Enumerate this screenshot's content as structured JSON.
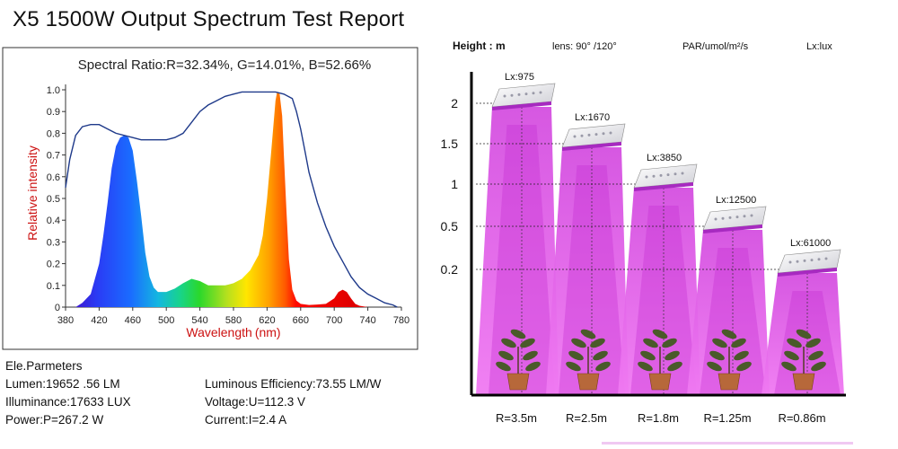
{
  "title": "X5 1500W Output Spectrum Test Report",
  "chart_data": [
    {
      "type": "line",
      "title": "Spectral Ratio:R=32.34%, G=14.01%, B=52.66%",
      "xlabel": "Wavelength",
      "xlabel_unit": "(nm)",
      "ylabel": "Relative intensity",
      "xlim": [
        380,
        780
      ],
      "ylim": [
        0,
        1.0
      ],
      "x_ticks": [
        "380",
        "420",
        "460",
        "500",
        "540",
        "580",
        "620",
        "660",
        "700",
        "740",
        "780"
      ],
      "y_ticks": [
        "0",
        "0.1",
        "0.2",
        "0.3",
        "0.4",
        "0.5",
        "0.6",
        "0.7",
        "0.8",
        "0.9",
        "1.0"
      ],
      "grid": false,
      "series": [
        {
          "name": "",
          "style": "outline",
          "color": "#1f3a8a",
          "x": [
            380,
            385,
            392,
            400,
            410,
            420,
            430,
            440,
            450,
            460,
            470,
            480,
            490,
            500,
            510,
            520,
            530,
            540,
            550,
            560,
            570,
            580,
            590,
            600,
            610,
            620,
            630,
            640,
            650,
            655,
            660,
            665,
            670,
            680,
            690,
            700,
            710,
            720,
            730,
            740,
            750,
            760,
            770,
            775
          ],
          "y": [
            0.55,
            0.68,
            0.79,
            0.83,
            0.84,
            0.84,
            0.82,
            0.8,
            0.79,
            0.78,
            0.77,
            0.77,
            0.77,
            0.77,
            0.78,
            0.8,
            0.85,
            0.9,
            0.93,
            0.95,
            0.97,
            0.98,
            0.99,
            0.99,
            0.99,
            0.99,
            0.99,
            0.98,
            0.96,
            0.9,
            0.82,
            0.72,
            0.62,
            0.48,
            0.37,
            0.28,
            0.21,
            0.14,
            0.09,
            0.06,
            0.04,
            0.02,
            0.01,
            0.0
          ]
        },
        {
          "name": "",
          "style": "filled-spectrum",
          "x": [
            392,
            400,
            410,
            420,
            425,
            430,
            435,
            440,
            445,
            450,
            455,
            460,
            465,
            470,
            475,
            480,
            485,
            490,
            500,
            510,
            520,
            530,
            540,
            550,
            560,
            570,
            580,
            590,
            600,
            610,
            615,
            620,
            625,
            630,
            632,
            635,
            638,
            640,
            643,
            646,
            650,
            655,
            660,
            670,
            680,
            690,
            700,
            705,
            710,
            715,
            720,
            725,
            730,
            740,
            750,
            760,
            770
          ],
          "y": [
            0.0,
            0.02,
            0.06,
            0.2,
            0.33,
            0.48,
            0.64,
            0.74,
            0.78,
            0.79,
            0.78,
            0.72,
            0.58,
            0.42,
            0.25,
            0.14,
            0.09,
            0.07,
            0.07,
            0.085,
            0.11,
            0.13,
            0.12,
            0.1,
            0.1,
            0.1,
            0.11,
            0.13,
            0.17,
            0.24,
            0.33,
            0.5,
            0.72,
            0.95,
            0.99,
            0.98,
            0.88,
            0.7,
            0.45,
            0.22,
            0.08,
            0.03,
            0.015,
            0.01,
            0.012,
            0.015,
            0.04,
            0.07,
            0.08,
            0.07,
            0.04,
            0.015,
            0.006,
            0.0,
            0.0,
            0.0,
            0.0
          ]
        }
      ]
    },
    {
      "type": "bar",
      "title": "",
      "header": {
        "height_label": "Height : m",
        "lens_label": "lens:  90°  /120°",
        "par_label": "PAR/umol/m²/s",
        "lux_label": "Lx:lux"
      },
      "ylabel": "Height : m",
      "y_ticks": [
        "2",
        "1.5",
        "1",
        "0.5",
        "0.2"
      ],
      "categories": [
        "R=3.5m",
        "R=2.5m",
        "R=1.8m",
        "R=1.25m",
        "R=0.86m"
      ],
      "heights_m": [
        2,
        1.5,
        1,
        0.5,
        0.2
      ],
      "series": [
        {
          "name": "Lx:lux",
          "labels": [
            "Lx:975",
            "Lx:1670",
            "Lx:3850",
            "Lx:12500",
            "Lx:61000"
          ],
          "values": [
            975,
            1670,
            3850,
            12500,
            61000
          ]
        }
      ],
      "colors": {
        "beam": "#e65ce8",
        "beam_dark": "#c832d2"
      }
    }
  ],
  "params": {
    "heading": "Ele.Parmeters",
    "rows": [
      [
        "Lumen:19652 .56 LM",
        "Luminous Efficiency:73.55 LM/W"
      ],
      [
        "Illuminance:17633 LUX",
        "Voltage:U=112.3 V"
      ],
      [
        "Power:P=267.2 W",
        "Current:I=2.4 A"
      ]
    ]
  }
}
